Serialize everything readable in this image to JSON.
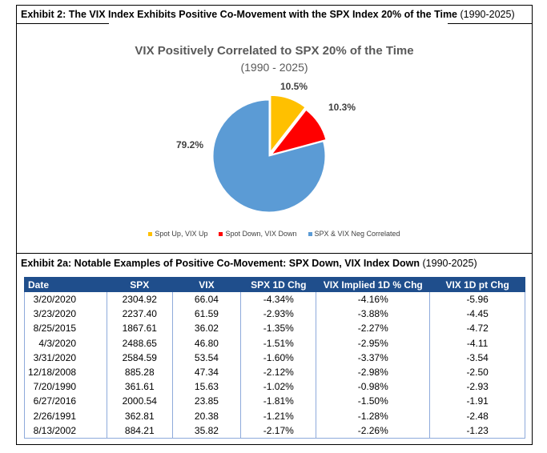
{
  "exhibit2": {
    "label": "Exhibit 2: The VIX Index Exhibits Positive Co-Movement with the SPX Index 20% of the Time",
    "period": "(1990-2025)"
  },
  "chart_data": {
    "type": "pie",
    "title": "VIX Positively Correlated to SPX 20% of the Time",
    "subtitle": "(1990 - 2025)",
    "legend_position": "bottom",
    "slices": [
      {
        "label": "Spot Up, VIX Up",
        "value": 10.5,
        "display": "10.5%",
        "color": "#ffc000"
      },
      {
        "label": "Spot Down, VIX Down",
        "value": 10.3,
        "display": "10.3%",
        "color": "#ff0000"
      },
      {
        "label": "SPX & VIX Neg Correlated",
        "value": 79.2,
        "display": "79.2%",
        "color": "#5b9bd5"
      }
    ]
  },
  "exhibit2a": {
    "label": "Exhibit 2a: Notable Examples of Positive Co-Movement: SPX Down, VIX Index Down",
    "period": "(1990-2025)"
  },
  "table": {
    "headers": [
      "Date",
      "SPX",
      "VIX",
      "SPX 1D Chg",
      "VIX Implied 1D % Chg",
      "VIX 1D pt Chg"
    ],
    "rows": [
      [
        "3/20/2020",
        "2304.92",
        "66.04",
        "-4.34%",
        "-4.16%",
        "-5.96"
      ],
      [
        "3/23/2020",
        "2237.40",
        "61.59",
        "-2.93%",
        "-3.88%",
        "-4.45"
      ],
      [
        "8/25/2015",
        "1867.61",
        "36.02",
        "-1.35%",
        "-2.27%",
        "-4.72"
      ],
      [
        "4/3/2020",
        "2488.65",
        "46.80",
        "-1.51%",
        "-2.95%",
        "-4.11"
      ],
      [
        "3/31/2020",
        "2584.59",
        "53.54",
        "-1.60%",
        "-3.37%",
        "-3.54"
      ],
      [
        "12/18/2008",
        "885.28",
        "47.34",
        "-2.12%",
        "-2.98%",
        "-2.50"
      ],
      [
        "7/20/1990",
        "361.61",
        "15.63",
        "-1.02%",
        "-0.98%",
        "-2.93"
      ],
      [
        "6/27/2016",
        "2000.54",
        "23.85",
        "-1.81%",
        "-1.50%",
        "-1.91"
      ],
      [
        "2/26/1991",
        "362.81",
        "20.38",
        "-1.21%",
        "-1.28%",
        "-2.48"
      ],
      [
        "8/13/2002",
        "884.21",
        "35.82",
        "-2.17%",
        "-2.26%",
        "-1.23"
      ]
    ]
  }
}
